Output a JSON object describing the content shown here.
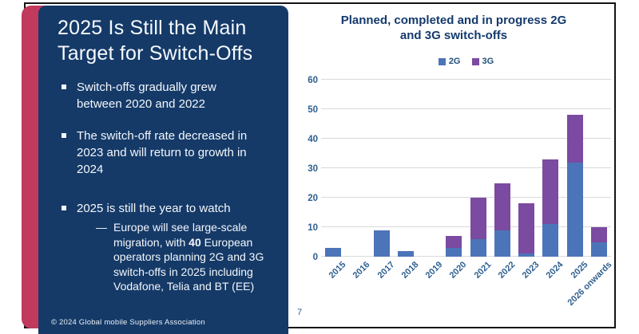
{
  "slide": {
    "title_lines": [
      "2025 Is Still the Main",
      "Target for Switch-Offs"
    ],
    "bullets": [
      {
        "text": "Switch-offs gradually grew between 2020 and 2022"
      },
      {
        "text": "The switch-off rate decreased in 2023 and will return to growth in 2024"
      },
      {
        "text": "2025 is still the year to watch",
        "sub": {
          "dash": "—",
          "prefix": "Europe will see large-scale migration, with ",
          "bold": "40",
          "suffix": " European operators planning 2G and 3G switch-offs in 2025 including Vodafone, Telia and BT (EE)"
        }
      }
    ],
    "footer": "© 2024 Global mobile Suppliers Association",
    "page_number": "7"
  },
  "chart_data": {
    "type": "bar",
    "stacked": true,
    "title": "Planned, completed and in progress 2G and 3G switch-offs",
    "categories": [
      "2015",
      "2016",
      "2017",
      "2018",
      "2019",
      "2020",
      "2021",
      "2022",
      "2023",
      "2024",
      "2025",
      "2026 onwards"
    ],
    "series": [
      {
        "name": "2G",
        "color": "#4c74b9",
        "values": [
          3,
          0,
          9,
          2,
          0,
          3,
          6,
          9,
          1,
          11,
          32,
          5
        ]
      },
      {
        "name": "3G",
        "color": "#7b4aa1",
        "values": [
          0,
          0,
          0,
          0,
          0,
          4,
          14,
          16,
          17,
          22,
          16,
          5
        ]
      }
    ],
    "totals": [
      3,
      0,
      9,
      2,
      0,
      7,
      20,
      25,
      18,
      33,
      48,
      10
    ],
    "ylim": [
      0,
      60
    ],
    "ytick_step": 10,
    "grid": true,
    "legend_position": "top",
    "gridline_color": "#d9d9d9"
  },
  "colors": {
    "panel_navy": "#153a68",
    "accent_red": "#c13a5e",
    "chart_text_navy": "#143a6d",
    "axis_text": "#2e5f8f",
    "bar_2g": "#4c74b9",
    "bar_3g": "#7b4aa1"
  }
}
